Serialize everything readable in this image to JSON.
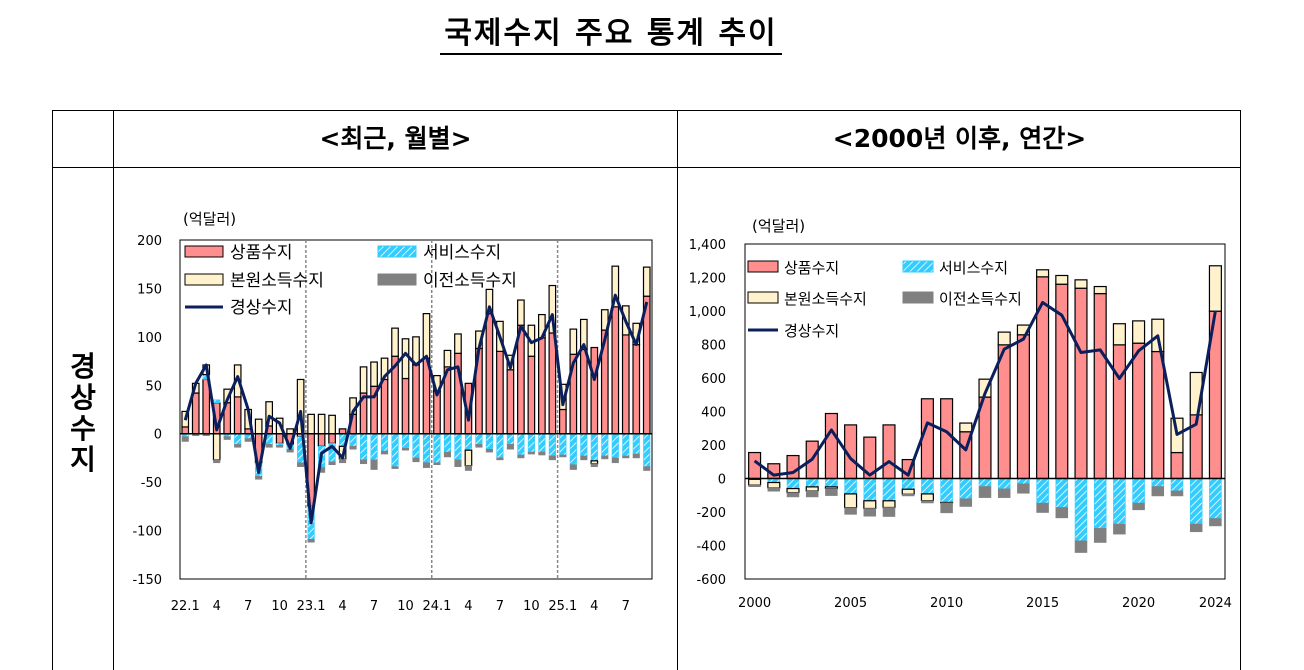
{
  "title": "국제수지 주요 통계 추이",
  "table": {
    "row_header": "경상수지",
    "col_monthly": "<최근, 월별>",
    "col_annual": "<2000년 이후, 연간>"
  },
  "colors": {
    "goods": "#ff8f8f",
    "services": "#33ccff",
    "primary": "#fff2cc",
    "secondary": "#808080",
    "current": "#0b1f5c"
  },
  "chart_data": [
    {
      "type": "bar",
      "stacked": true,
      "unit": "(억달러)",
      "ylim": [
        -150,
        200
      ],
      "yticks": [
        "200",
        "150",
        "100",
        "50",
        "0",
        "-50",
        "-100",
        "-150"
      ],
      "ytick_values": [
        200,
        150,
        100,
        50,
        0,
        -50,
        -100,
        -150
      ],
      "xtick_labels": [
        {
          "i": 0,
          "t": "22.1"
        },
        {
          "i": 3,
          "t": "4"
        },
        {
          "i": 6,
          "t": "7"
        },
        {
          "i": 9,
          "t": "10"
        },
        {
          "i": 12,
          "t": "23.1"
        },
        {
          "i": 15,
          "t": "4"
        },
        {
          "i": 18,
          "t": "7"
        },
        {
          "i": 21,
          "t": "10"
        },
        {
          "i": 24,
          "t": "24.1"
        },
        {
          "i": 27,
          "t": "4"
        },
        {
          "i": 30,
          "t": "7"
        },
        {
          "i": 33,
          "t": "10"
        },
        {
          "i": 36,
          "t": "25.1"
        },
        {
          "i": 39,
          "t": "4"
        },
        {
          "i": 42,
          "t": "7"
        }
      ],
      "year_dividers": [
        12,
        24,
        36
      ],
      "legend": [
        "상품수지",
        "서비스수지",
        "본원소득수지",
        "이전소득수지",
        "경상수지"
      ],
      "x": [
        "22.1",
        "22.2",
        "22.3",
        "22.4",
        "22.5",
        "22.6",
        "22.7",
        "22.8",
        "22.9",
        "22.10",
        "22.11",
        "22.12",
        "23.1",
        "23.2",
        "23.3",
        "23.4",
        "23.5",
        "23.6",
        "23.7",
        "23.8",
        "23.9",
        "23.10",
        "23.11",
        "23.12",
        "24.1",
        "24.2",
        "24.3",
        "24.4",
        "24.5",
        "24.6",
        "24.7",
        "24.8",
        "24.9",
        "24.10",
        "24.11",
        "24.12",
        "25.1",
        "25.2",
        "25.3",
        "25.4",
        "25.5",
        "25.6",
        "25.7",
        "25.8",
        "25.9"
      ],
      "series": [
        {
          "name": "상품수지",
          "values": [
            7,
            42,
            56,
            32,
            32,
            38,
            5,
            -30,
            8,
            -10,
            -11,
            -3,
            -75,
            -13,
            -10,
            5,
            20,
            42,
            49,
            56,
            80,
            57,
            71,
            78,
            44,
            69,
            83,
            52,
            88,
            124,
            85,
            66,
            112,
            80,
            99,
            104,
            25,
            82,
            87,
            89,
            107,
            131,
            102,
            92,
            142
          ]
        },
        {
          "name": "서비스수지",
          "values": [
            -3,
            0,
            5,
            3,
            -3,
            -11,
            -5,
            -14,
            -11,
            -2,
            -5,
            -27,
            -34,
            -22,
            -19,
            -13,
            -13,
            -27,
            -27,
            -18,
            -34,
            -15,
            -25,
            -30,
            -30,
            -19,
            -27,
            -17,
            -11,
            -16,
            -25,
            -11,
            -22,
            -19,
            -19,
            -23,
            -22,
            -32,
            -23,
            -28,
            -23,
            -25,
            -23,
            -21,
            -34
          ]
        },
        {
          "name": "본원소득수지",
          "values": [
            16,
            10,
            10,
            -27,
            14,
            33,
            20,
            15,
            25,
            16,
            5,
            56,
            20,
            20,
            19,
            -13,
            17,
            27,
            25,
            22,
            29,
            41,
            29,
            46,
            16,
            17,
            20,
            -16,
            18,
            25,
            31,
            15,
            26,
            32,
            24,
            49,
            26,
            26,
            31,
            -3,
            21,
            42,
            30,
            22,
            30
          ]
        },
        {
          "name": "이전소득수지",
          "values": [
            -5,
            -2,
            -2,
            -3,
            -3,
            -3,
            -3,
            -3,
            -3,
            -2,
            -3,
            -4,
            -3,
            -5,
            -3,
            -4,
            -3,
            -4,
            -10,
            -3,
            -2,
            -2,
            -4,
            -5,
            -2,
            -5,
            -7,
            -5,
            -3,
            -3,
            -2,
            -5,
            -3,
            -2,
            -3,
            -4,
            -2,
            -5,
            -4,
            -3,
            -3,
            -5,
            -2,
            -4,
            -4
          ]
        },
        {
          "name": "경상수지",
          "type": "line",
          "values": [
            14,
            52,
            71,
            4,
            35,
            59,
            25,
            -40,
            18,
            11,
            -15,
            23,
            -92,
            -20,
            -13,
            -25,
            23,
            38,
            38,
            59,
            70,
            83,
            71,
            80,
            40,
            66,
            69,
            14,
            88,
            131,
            100,
            68,
            111,
            94,
            99,
            123,
            30,
            73,
            92,
            56,
            97,
            143,
            116,
            92,
            136
          ]
        }
      ]
    },
    {
      "type": "bar",
      "stacked": true,
      "unit": "(억달러)",
      "ylim": [
        -600,
        1400
      ],
      "yticks": [
        "1,400",
        "1,200",
        "1,000",
        "800",
        "600",
        "400",
        "200",
        "0",
        "-200",
        "-400",
        "-600"
      ],
      "ytick_values": [
        1400,
        1200,
        1000,
        800,
        600,
        400,
        200,
        0,
        -200,
        -400,
        -600
      ],
      "xtick_labels": [
        {
          "i": 0,
          "t": "2000"
        },
        {
          "i": 5,
          "t": "2005"
        },
        {
          "i": 10,
          "t": "2010"
        },
        {
          "i": 15,
          "t": "2015"
        },
        {
          "i": 20,
          "t": "2020"
        },
        {
          "i": 24,
          "t": "2024"
        }
      ],
      "year_dividers": [],
      "legend": [
        "상품수지",
        "서비스수지",
        "본원소득수지",
        "이전소득수지",
        "경상수지"
      ],
      "x": [
        "2000",
        "2001",
        "2002",
        "2003",
        "2004",
        "2005",
        "2006",
        "2007",
        "2008",
        "2009",
        "2010",
        "2011",
        "2012",
        "2013",
        "2014",
        "2015",
        "2016",
        "2017",
        "2018",
        "2019",
        "2020",
        "2021",
        "2022",
        "2023",
        "2024"
      ],
      "series": [
        {
          "name": "상품수지",
          "values": [
            155,
            88,
            137,
            223,
            388,
            320,
            247,
            320,
            113,
            476,
            476,
            279,
            486,
            798,
            858,
            1204,
            1160,
            1136,
            1104,
            798,
            808,
            758,
            155,
            380,
            999
          ]
        },
        {
          "name": "서비스수지",
          "values": [
            -5,
            -24,
            -60,
            -50,
            -50,
            -92,
            -133,
            -133,
            -64,
            -92,
            -143,
            -121,
            -48,
            -62,
            -32,
            -147,
            -173,
            -372,
            -298,
            -272,
            -147,
            -48,
            -74,
            -272,
            -239
          ]
        },
        {
          "name": "본원소득수지",
          "values": [
            -34,
            -32,
            -24,
            -24,
            -10,
            -82,
            -46,
            -40,
            -30,
            -40,
            -2,
            52,
            107,
            76,
            58,
            42,
            52,
            50,
            42,
            126,
            133,
            193,
            205,
            253,
            271
          ]
        },
        {
          "name": "이전소득수지",
          "values": [
            -10,
            -20,
            -26,
            -36,
            -42,
            -40,
            -46,
            -54,
            -10,
            -14,
            -60,
            -46,
            -66,
            -52,
            -56,
            -56,
            -62,
            -70,
            -84,
            -60,
            -40,
            -56,
            -30,
            -46,
            -44
          ]
        },
        {
          "name": "경상수지",
          "type": "line",
          "values": [
            105,
            20,
            36,
            115,
            290,
            119,
            20,
            101,
            20,
            332,
            279,
            171,
            508,
            772,
            832,
            1051,
            975,
            752,
            768,
            597,
            762,
            852,
            263,
            324,
            1001
          ]
        }
      ]
    }
  ]
}
